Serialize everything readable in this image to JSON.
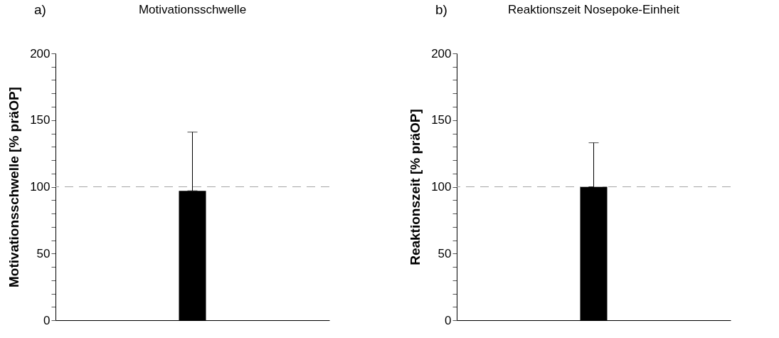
{
  "chart_data": [
    {
      "type": "bar",
      "title": "Motivationsschwelle",
      "ylabel": "Motivationsschwelle [% präOP]",
      "annotations": [
        "a)"
      ],
      "categories": [
        null
      ],
      "values": [
        97
      ],
      "errors": [
        [
          97,
          141
        ]
      ],
      "color": "#000000",
      "ylim": [
        0,
        200
      ],
      "yticks": [
        0,
        {
          "value": 10,
          "label": null
        },
        {
          "value": 20,
          "label": null
        },
        {
          "value": 30,
          "label": null
        },
        {
          "value": 40,
          "label": null
        },
        50,
        {
          "value": 60,
          "label": null
        },
        {
          "value": 70,
          "label": null
        },
        {
          "value": 80,
          "label": null
        },
        {
          "value": 90,
          "label": null
        },
        100,
        {
          "value": 110,
          "label": null
        },
        {
          "value": 120,
          "label": null
        },
        {
          "value": 130,
          "label": null
        },
        {
          "value": 140,
          "label": null
        },
        150,
        {
          "value": 160,
          "label": null
        },
        {
          "value": 170,
          "label": null
        },
        {
          "value": 180,
          "label": null
        },
        {
          "value": 190,
          "label": null
        },
        200
      ],
      "ref_lines": [
        {
          "axis": "y",
          "value": 100,
          "color": "#a6a6a6",
          "line_style": "dashed"
        }
      ]
    },
    {
      "type": "bar",
      "title": "Reaktionszeit Nosepoke-Einheit",
      "ylabel": "Reaktionszeit [% präOP]",
      "annotations": [
        "b)"
      ],
      "categories": [
        null
      ],
      "values": [
        100
      ],
      "errors": [
        [
          100,
          133
        ]
      ],
      "color": "#000000",
      "ylim": [
        0,
        200
      ],
      "yticks": [
        0,
        {
          "value": 10,
          "label": null
        },
        {
          "value": 20,
          "label": null
        },
        {
          "value": 30,
          "label": null
        },
        {
          "value": 40,
          "label": null
        },
        50,
        {
          "value": 60,
          "label": null
        },
        {
          "value": 70,
          "label": null
        },
        {
          "value": 80,
          "label": null
        },
        {
          "value": 90,
          "label": null
        },
        100,
        {
          "value": 110,
          "label": null
        },
        {
          "value": 120,
          "label": null
        },
        {
          "value": 130,
          "label": null
        },
        {
          "value": 140,
          "label": null
        },
        150,
        {
          "value": 160,
          "label": null
        },
        {
          "value": 170,
          "label": null
        },
        {
          "value": 180,
          "label": null
        },
        {
          "value": 190,
          "label": null
        },
        200
      ],
      "ref_lines": [
        {
          "axis": "y",
          "value": 100,
          "color": "#a6a6a6",
          "line_style": "dashed"
        }
      ]
    }
  ]
}
